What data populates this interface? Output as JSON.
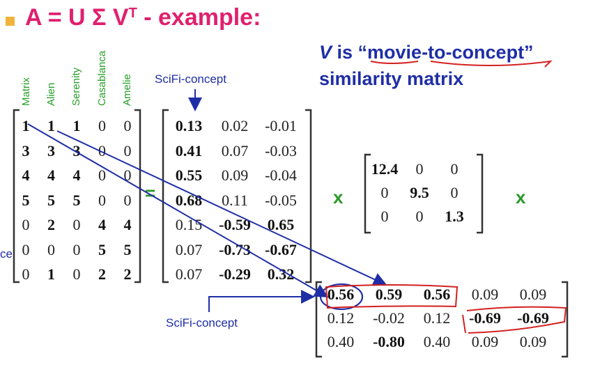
{
  "title": {
    "bullet": "square",
    "main": "A = U Σ V",
    "sup": "T",
    "suffix": " - example:"
  },
  "note": {
    "v": "V",
    "line1_rest": " is “movie-to-concept”",
    "line2": "similarity matrix"
  },
  "movies": [
    "Matrix",
    "Alien",
    "Serenity",
    "Casablanca",
    "Amelie"
  ],
  "scifi_label_top": "SciFi-concept",
  "scifi_label_bottom": "SciFi-concept",
  "partial_label": "ce",
  "equals": "=",
  "times": "x",
  "A": [
    [
      {
        "v": "1",
        "b": true
      },
      {
        "v": "1",
        "b": true
      },
      {
        "v": "1",
        "b": true
      },
      {
        "v": "0",
        "b": false
      },
      {
        "v": "0",
        "b": false
      }
    ],
    [
      {
        "v": "3",
        "b": true
      },
      {
        "v": "3",
        "b": true
      },
      {
        "v": "3",
        "b": true
      },
      {
        "v": "0",
        "b": false
      },
      {
        "v": "0",
        "b": false
      }
    ],
    [
      {
        "v": "4",
        "b": true
      },
      {
        "v": "4",
        "b": true
      },
      {
        "v": "4",
        "b": true
      },
      {
        "v": "0",
        "b": false
      },
      {
        "v": "0",
        "b": false
      }
    ],
    [
      {
        "v": "5",
        "b": true
      },
      {
        "v": "5",
        "b": true
      },
      {
        "v": "5",
        "b": true
      },
      {
        "v": "0",
        "b": false
      },
      {
        "v": "0",
        "b": false
      }
    ],
    [
      {
        "v": "0",
        "b": false
      },
      {
        "v": "2",
        "b": true
      },
      {
        "v": "0",
        "b": false
      },
      {
        "v": "4",
        "b": true
      },
      {
        "v": "4",
        "b": true
      }
    ],
    [
      {
        "v": "0",
        "b": false
      },
      {
        "v": "0",
        "b": false
      },
      {
        "v": "0",
        "b": false
      },
      {
        "v": "5",
        "b": true
      },
      {
        "v": "5",
        "b": true
      }
    ],
    [
      {
        "v": "0",
        "b": false
      },
      {
        "v": "1",
        "b": true
      },
      {
        "v": "0",
        "b": false
      },
      {
        "v": "2",
        "b": true
      },
      {
        "v": "2",
        "b": true
      }
    ]
  ],
  "U": [
    [
      {
        "v": "0.13",
        "b": true
      },
      {
        "v": "0.02",
        "b": false
      },
      {
        "v": "-0.01",
        "b": false
      }
    ],
    [
      {
        "v": "0.41",
        "b": true
      },
      {
        "v": "0.07",
        "b": false
      },
      {
        "v": "-0.03",
        "b": false
      }
    ],
    [
      {
        "v": "0.55",
        "b": true
      },
      {
        "v": "0.09",
        "b": false
      },
      {
        "v": "-0.04",
        "b": false
      }
    ],
    [
      {
        "v": "0.68",
        "b": true
      },
      {
        "v": "0.11",
        "b": false
      },
      {
        "v": "-0.05",
        "b": false
      }
    ],
    [
      {
        "v": "0.15",
        "b": false
      },
      {
        "v": "-0.59",
        "b": true
      },
      {
        "v": "0.65",
        "b": true
      }
    ],
    [
      {
        "v": "0.07",
        "b": false
      },
      {
        "v": "-0.73",
        "b": true
      },
      {
        "v": "-0.67",
        "b": true
      }
    ],
    [
      {
        "v": "0.07",
        "b": false
      },
      {
        "v": "-0.29",
        "b": true
      },
      {
        "v": "0.32",
        "b": true
      }
    ]
  ],
  "S": [
    [
      {
        "v": "12.4",
        "b": true
      },
      {
        "v": "0",
        "b": false
      },
      {
        "v": "0",
        "b": false
      }
    ],
    [
      {
        "v": "0",
        "b": false
      },
      {
        "v": "9.5",
        "b": true
      },
      {
        "v": "0",
        "b": false
      }
    ],
    [
      {
        "v": "0",
        "b": false
      },
      {
        "v": "0",
        "b": false
      },
      {
        "v": "1.3",
        "b": true
      }
    ]
  ],
  "VT": [
    [
      {
        "v": "0.56",
        "b": true
      },
      {
        "v": "0.59",
        "b": true
      },
      {
        "v": "0.56",
        "b": true
      },
      {
        "v": "0.09",
        "b": false
      },
      {
        "v": "0.09",
        "b": false
      }
    ],
    [
      {
        "v": "0.12",
        "b": false
      },
      {
        "v": "-0.02",
        "b": false
      },
      {
        "v": "0.12",
        "b": false
      },
      {
        "v": "-0.69",
        "b": true
      },
      {
        "v": "-0.69",
        "b": true
      }
    ],
    [
      {
        "v": "0.40",
        "b": false
      },
      {
        "v": "-0.80",
        "b": true
      },
      {
        "v": "0.40",
        "b": false
      },
      {
        "v": "0.09",
        "b": false
      },
      {
        "v": "0.09",
        "b": false
      }
    ]
  ],
  "colors": {
    "title": "#e0206e",
    "note": "#1f2ea6",
    "movies": "#27a02a",
    "annotation_red": "#d42020",
    "arrow_blue": "#1f2ea6",
    "bullet": "#f0b43c"
  }
}
